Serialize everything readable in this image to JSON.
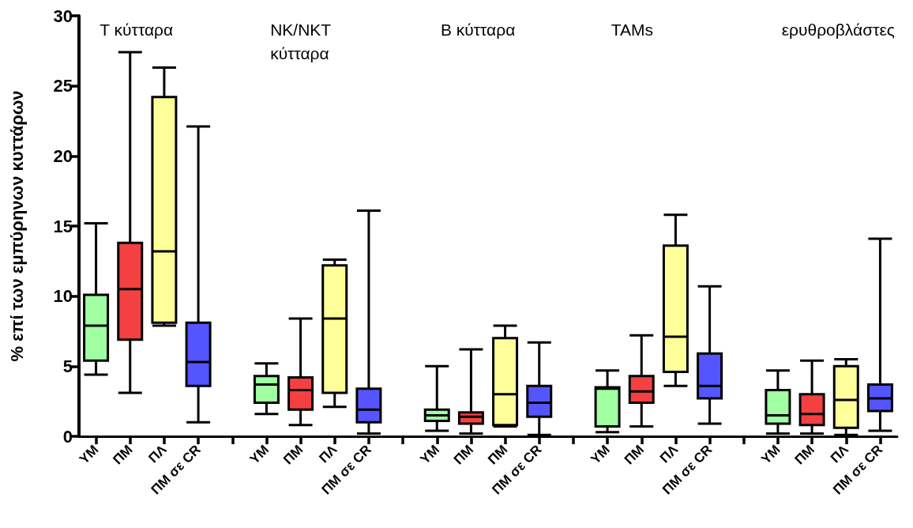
{
  "chart_data": {
    "type": "box",
    "ylabel": "% επί των εμπύρηνων κυττάρων",
    "annotations": [
      "T κύτταρα",
      "NK/NKT\nκύτταρα",
      "B κύτταρα",
      "TAMs",
      "ερυθροβλάστες"
    ],
    "categories": [
      "ΥΜ",
      "ΠΜ",
      "ΠΛ",
      "ΠΜ σε CR",
      null,
      "ΥΜ",
      "ΠΜ",
      "ΠΛ",
      "ΠΜ σε CR",
      null,
      "ΥΜ",
      "ΠΜ",
      "ΠΜ",
      "ΠΜ σε CR",
      null,
      "ΥΜ",
      "ΠΜ",
      "ΠΛ",
      "ΠΜ σε CR",
      null,
      "ΥΜ",
      "ΠΜ",
      "ΠΛ",
      "ΠΜ σε CR"
    ],
    "colors": [
      "#a0ffa0",
      "#f44040",
      "#ffff99",
      "#5555ff",
      null,
      "#a0ffa0",
      "#f44040",
      "#ffff99",
      "#5555ff",
      null,
      "#a0ffa0",
      "#f44040",
      "#ffff99",
      "#5555ff",
      null,
      "#a0ffa0",
      "#f44040",
      "#ffff99",
      "#5555ff",
      null,
      "#a0ffa0",
      "#f44040",
      "#ffff99",
      "#5555ff"
    ],
    "boxes": [
      {
        "low": 4.4,
        "q1": 5.4,
        "median": 7.9,
        "q3": 10.1,
        "high": 15.2
      },
      {
        "low": 3.1,
        "q1": 6.9,
        "median": 10.5,
        "q3": 13.8,
        "high": 27.4
      },
      {
        "low": 7.9,
        "q1": 8.1,
        "median": 13.2,
        "q3": 24.2,
        "high": 26.3
      },
      {
        "low": 1.0,
        "q1": 3.6,
        "median": 5.3,
        "q3": 8.1,
        "high": 22.1
      },
      null,
      {
        "low": 1.6,
        "q1": 2.4,
        "median": 3.7,
        "q3": 4.3,
        "high": 5.2
      },
      {
        "low": 0.8,
        "q1": 1.9,
        "median": 3.3,
        "q3": 4.2,
        "high": 8.4
      },
      {
        "low": 2.1,
        "q1": 3.1,
        "median": 8.4,
        "q3": 12.2,
        "high": 12.6
      },
      {
        "low": 0.2,
        "q1": 1.0,
        "median": 1.9,
        "q3": 3.4,
        "high": 16.1
      },
      null,
      {
        "low": 0.4,
        "q1": 1.1,
        "median": 1.5,
        "q3": 1.9,
        "high": 5.0
      },
      {
        "low": 0.2,
        "q1": 0.9,
        "median": 1.4,
        "q3": 1.7,
        "high": 6.2
      },
      {
        "low": 0.7,
        "q1": 0.8,
        "median": 3.0,
        "q3": 7.0,
        "high": 7.9
      },
      {
        "low": 0.1,
        "q1": 1.4,
        "median": 2.4,
        "q3": 3.6,
        "high": 6.7
      },
      null,
      {
        "low": 0.3,
        "q1": 0.7,
        "median": 3.4,
        "q3": 3.5,
        "high": 4.7
      },
      {
        "low": 0.7,
        "q1": 2.4,
        "median": 3.2,
        "q3": 4.3,
        "high": 7.2
      },
      {
        "low": 3.6,
        "q1": 4.6,
        "median": 7.1,
        "q3": 13.6,
        "high": 15.8
      },
      {
        "low": 0.9,
        "q1": 2.7,
        "median": 3.6,
        "q3": 5.9,
        "high": 10.7
      },
      null,
      {
        "low": 0.2,
        "q1": 0.9,
        "median": 1.5,
        "q3": 3.3,
        "high": 4.7
      },
      {
        "low": 0.2,
        "q1": 0.8,
        "median": 1.6,
        "q3": 3.0,
        "high": 5.4
      },
      {
        "low": 0.1,
        "q1": 0.6,
        "median": 2.6,
        "q3": 5.0,
        "high": 5.5
      },
      {
        "low": 0.4,
        "q1": 1.8,
        "median": 2.7,
        "q3": 3.7,
        "high": 14.1
      }
    ],
    "ylim": [
      0,
      30
    ],
    "yticks": [
      0,
      5,
      10,
      15,
      20,
      25,
      30
    ],
    "grid": false
  }
}
